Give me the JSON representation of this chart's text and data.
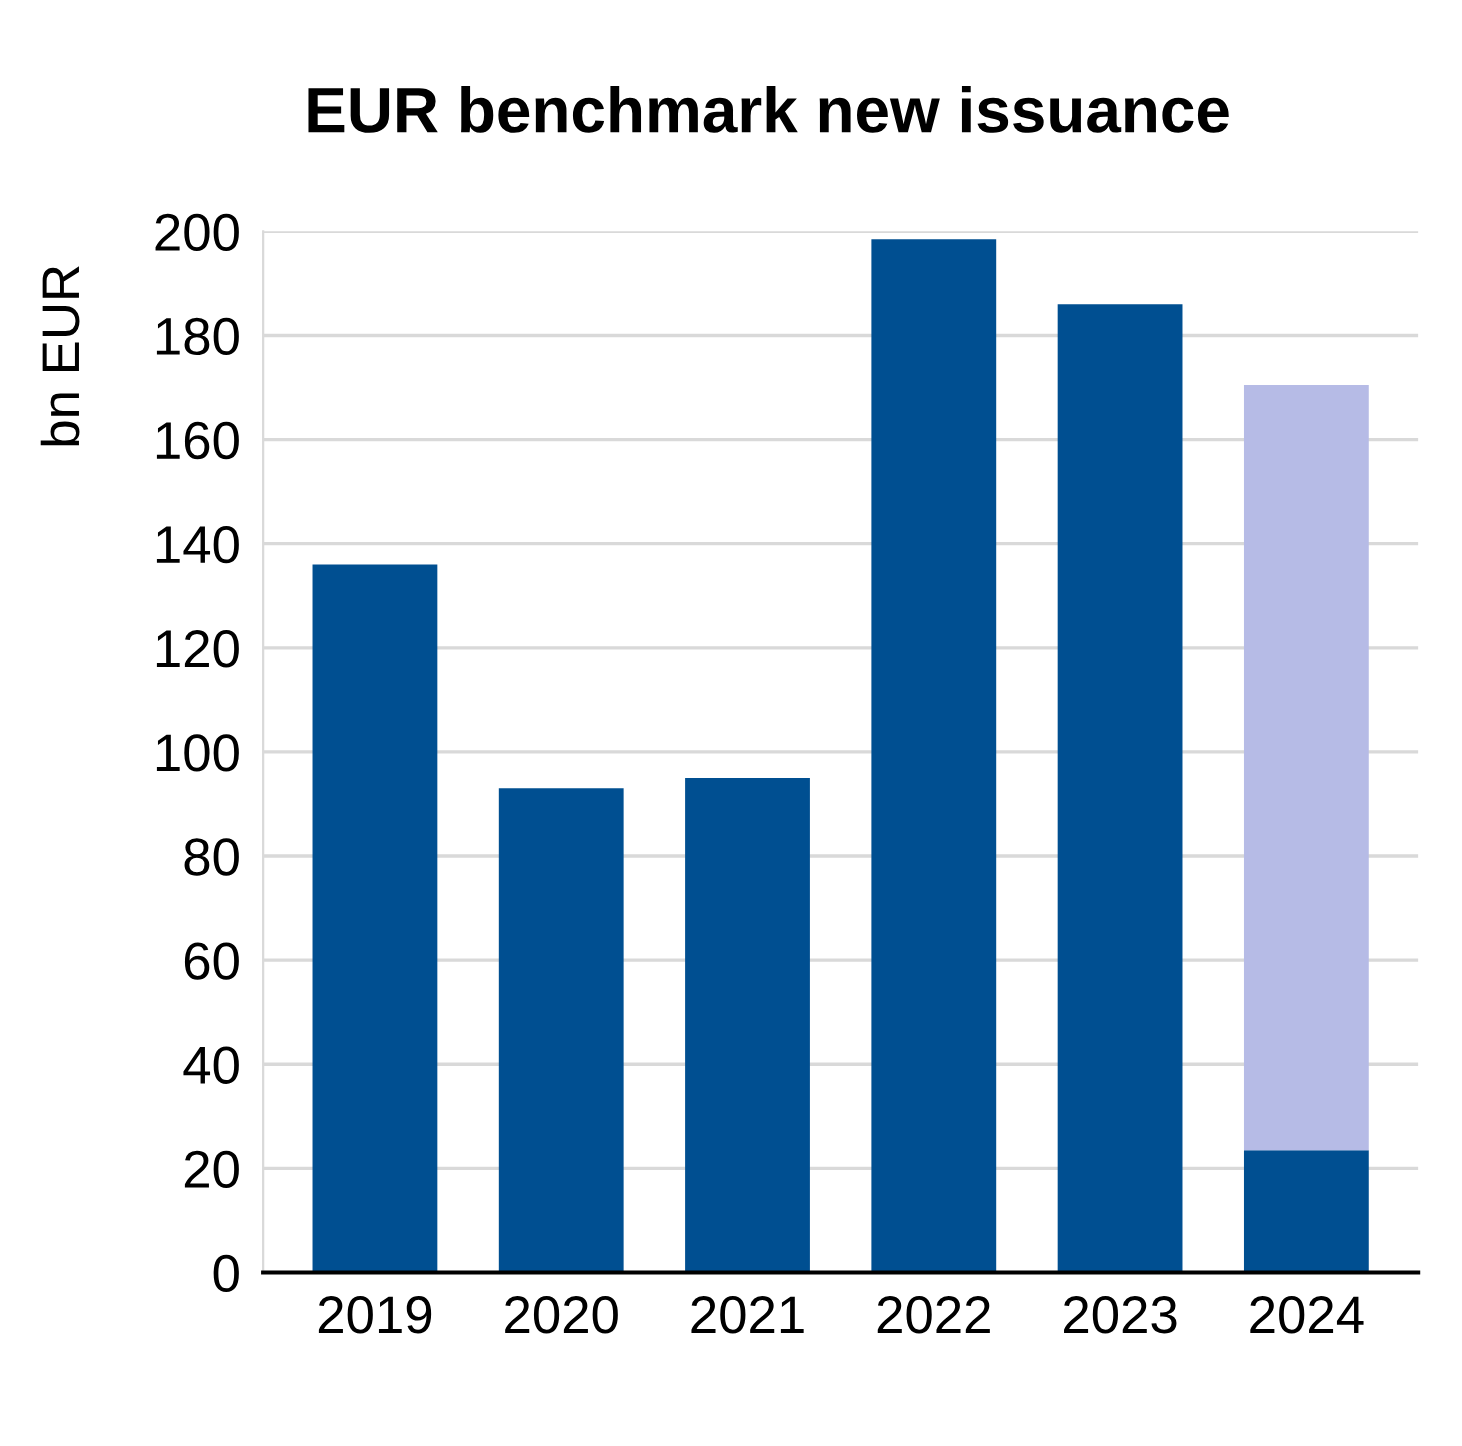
{
  "chart_data": {
    "type": "bar",
    "title": "EUR benchmark new issuance",
    "ylabel": "bn EUR",
    "categories": [
      "2019",
      "2020",
      "2021",
      "2022",
      "2023",
      "2024"
    ],
    "stacked": true,
    "series": [
      {
        "color": "#004f91",
        "values": [
          136,
          93,
          95,
          198.5,
          186,
          23.5
        ]
      },
      {
        "color": "#b6bbe6",
        "values": [
          0,
          0,
          0,
          0,
          0,
          147
        ]
      }
    ],
    "ylim": [
      0,
      200
    ],
    "yticks": [
      0,
      20,
      40,
      60,
      80,
      100,
      120,
      140,
      160,
      180,
      200
    ],
    "grid": "y",
    "legend": false
  }
}
